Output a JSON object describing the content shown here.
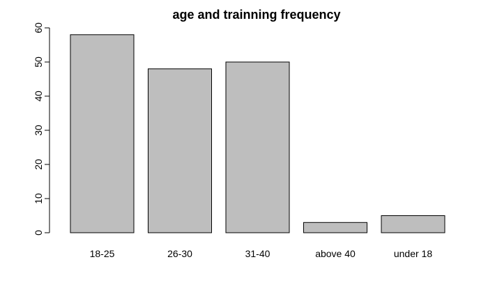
{
  "chart_data": {
    "type": "bar",
    "title": "age and trainning frequency",
    "xlabel": "",
    "ylabel": "",
    "categories": [
      "18-25",
      "26-30",
      "31-40",
      "above 40",
      "under 18"
    ],
    "values": [
      58,
      48,
      50,
      3,
      5
    ],
    "ylim": [
      0,
      60
    ],
    "yticks": [
      0,
      10,
      20,
      30,
      40,
      50,
      60
    ],
    "grid": false,
    "legend": "none",
    "colors": {
      "bar_fill": "#bebebe",
      "bar_stroke": "#000000",
      "text": "#000000",
      "background": "#ffffff"
    }
  }
}
